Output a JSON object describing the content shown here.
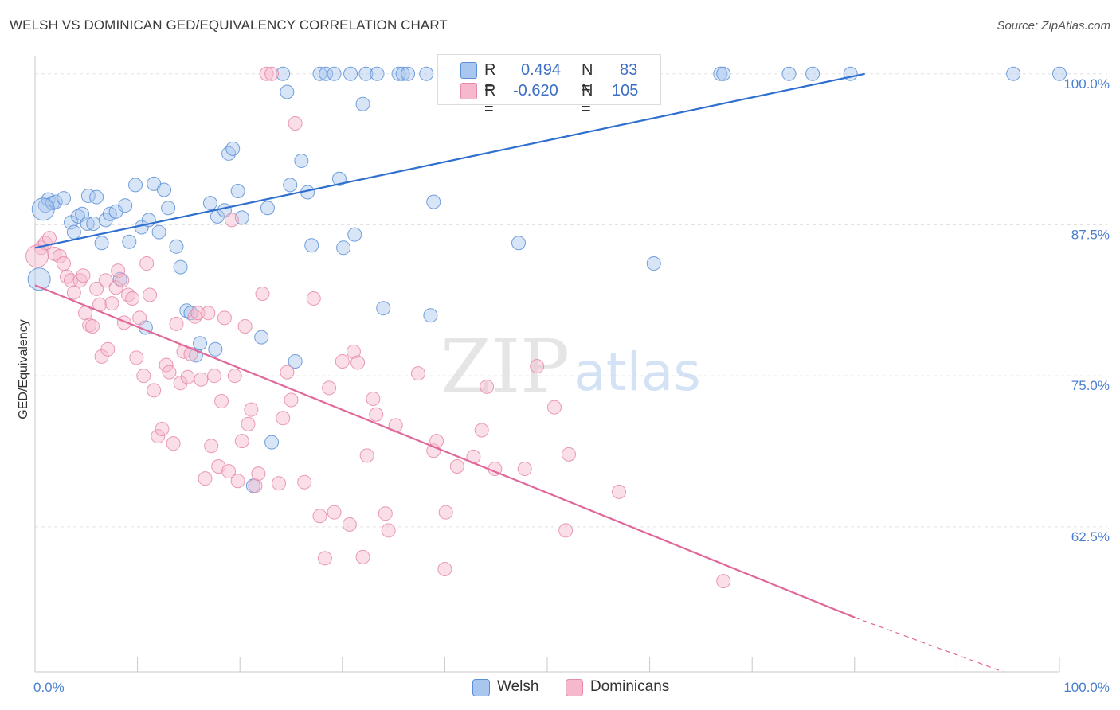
{
  "title": "WELSH VS DOMINICAN GED/EQUIVALENCY CORRELATION CHART",
  "source": "Source: ZipAtlas.com",
  "watermark": {
    "zip": "ZIP",
    "atlas": "atlas"
  },
  "legend_box": {
    "rows": [
      {
        "r_label": "R =",
        "r_value": "0.494",
        "n_label": "N =",
        "n_value": "83"
      },
      {
        "r_label": "R =",
        "r_value": "-0.620",
        "n_label": "N =",
        "n_value": "105"
      }
    ]
  },
  "bottom_legend": [
    "Welsh",
    "Dominicans"
  ],
  "colors": {
    "welsh_fill": "#a9c6ee",
    "welsh_stroke": "#5b8fd6",
    "welsh_line": "#2f6fcf",
    "dom_fill": "#f6b8cc",
    "dom_stroke": "#e58aa8",
    "dom_line": "#e0679a",
    "tick_text": "#4a7fd0",
    "grid": "#e2e2e2"
  },
  "chart_data": {
    "type": "scatter",
    "title": "WELSH VS DOMINICAN GED/EQUIVALENCY CORRELATION CHART",
    "xlabel": "",
    "ylabel": "GED/Equivalency",
    "xlim": [
      0,
      100
    ],
    "ylim": [
      50.5,
      101.5
    ],
    "x_tick_labels": [
      {
        "value": 0,
        "label": "0.0%"
      },
      {
        "value": 100,
        "label": "100.0%"
      }
    ],
    "y_tick_labels": [
      {
        "value": 100,
        "label": "100.0%"
      },
      {
        "value": 87.5,
        "label": "87.5%"
      },
      {
        "value": 75,
        "label": "75.0%"
      },
      {
        "value": 62.5,
        "label": "62.5%"
      }
    ],
    "grid": true,
    "legend_position": "top-center",
    "series": [
      {
        "name": "Welsh",
        "r": 0.494,
        "n": 83,
        "trend": {
          "x0": 0,
          "y0": 85.6,
          "x1": 81,
          "y1": 100
        },
        "points": [
          [
            1.0,
            89.1
          ],
          [
            1.3,
            89.6
          ],
          [
            1.7,
            89.3
          ],
          [
            2.0,
            89.4
          ],
          [
            2.8,
            89.7
          ],
          [
            3.5,
            87.7
          ],
          [
            3.8,
            86.9
          ],
          [
            4.2,
            88.2
          ],
          [
            4.6,
            88.4
          ],
          [
            5.1,
            87.6
          ],
          [
            5.2,
            89.9
          ],
          [
            5.7,
            87.6
          ],
          [
            6.0,
            89.8
          ],
          [
            6.5,
            86.0
          ],
          [
            6.9,
            87.9
          ],
          [
            7.3,
            88.4
          ],
          [
            7.9,
            88.6
          ],
          [
            8.3,
            83.0
          ],
          [
            8.8,
            89.1
          ],
          [
            9.2,
            86.1
          ],
          [
            9.8,
            90.8
          ],
          [
            10.4,
            87.3
          ],
          [
            10.8,
            79.0
          ],
          [
            11.1,
            87.9
          ],
          [
            11.6,
            90.9
          ],
          [
            12.1,
            86.9
          ],
          [
            12.6,
            90.4
          ],
          [
            13.0,
            88.9
          ],
          [
            13.8,
            85.7
          ],
          [
            14.2,
            84.0
          ],
          [
            14.8,
            80.4
          ],
          [
            15.2,
            80.2
          ],
          [
            15.7,
            76.7
          ],
          [
            16.1,
            77.7
          ],
          [
            17.1,
            89.3
          ],
          [
            17.6,
            77.2
          ],
          [
            17.8,
            88.2
          ],
          [
            18.5,
            88.7
          ],
          [
            18.9,
            93.4
          ],
          [
            19.3,
            93.8
          ],
          [
            19.8,
            90.3
          ],
          [
            20.2,
            88.1
          ],
          [
            21.3,
            65.9
          ],
          [
            22.1,
            78.2
          ],
          [
            22.7,
            88.9
          ],
          [
            23.1,
            69.5
          ],
          [
            24.2,
            100.0
          ],
          [
            24.6,
            98.5
          ],
          [
            24.9,
            90.8
          ],
          [
            25.4,
            76.2
          ],
          [
            26.0,
            92.8
          ],
          [
            26.6,
            90.2
          ],
          [
            27.0,
            85.8
          ],
          [
            27.8,
            100.0
          ],
          [
            28.4,
            100.0
          ],
          [
            29.2,
            100.0
          ],
          [
            29.7,
            91.3
          ],
          [
            30.1,
            85.6
          ],
          [
            30.8,
            100.0
          ],
          [
            31.2,
            86.7
          ],
          [
            32.0,
            97.5
          ],
          [
            32.3,
            100.0
          ],
          [
            33.4,
            100.0
          ],
          [
            34.0,
            80.6
          ],
          [
            35.5,
            100.0
          ],
          [
            35.9,
            100.0
          ],
          [
            36.4,
            100.0
          ],
          [
            38.2,
            100.0
          ],
          [
            38.6,
            80.0
          ],
          [
            38.9,
            89.4
          ],
          [
            40.0,
            100.0
          ],
          [
            42.0,
            100.0
          ],
          [
            47.2,
            86.0
          ],
          [
            54.2,
            100.0
          ],
          [
            60.4,
            84.3
          ],
          [
            66.9,
            100.0
          ],
          [
            67.2,
            100.0
          ],
          [
            73.6,
            100.0
          ],
          [
            75.9,
            100.0
          ],
          [
            79.6,
            100.0
          ],
          [
            95.5,
            100.0
          ],
          [
            100.0,
            100.0
          ],
          [
            0.4,
            83.0,
            "big"
          ],
          [
            0.8,
            88.8,
            "big"
          ]
        ]
      },
      {
        "name": "Dominicans",
        "r": -0.62,
        "n": 105,
        "trend": {
          "x0": 0,
          "y0": 82.5,
          "x1": 80,
          "y1": 55.0,
          "dash_to_x": 94.5,
          "dash_to_y": 50.5
        },
        "points": [
          [
            0.6,
            85.6
          ],
          [
            1.0,
            86.0
          ],
          [
            1.4,
            86.4
          ],
          [
            1.9,
            85.1
          ],
          [
            2.4,
            84.9
          ],
          [
            2.8,
            84.3
          ],
          [
            3.1,
            83.2
          ],
          [
            3.5,
            82.9
          ],
          [
            3.8,
            81.9
          ],
          [
            4.4,
            82.9
          ],
          [
            4.7,
            83.3
          ],
          [
            4.9,
            80.2
          ],
          [
            5.3,
            79.2
          ],
          [
            5.6,
            79.1
          ],
          [
            6.0,
            82.2
          ],
          [
            6.3,
            80.9
          ],
          [
            6.5,
            76.6
          ],
          [
            6.9,
            82.9
          ],
          [
            7.1,
            77.2
          ],
          [
            7.5,
            81.0
          ],
          [
            7.9,
            82.3
          ],
          [
            8.1,
            83.7
          ],
          [
            8.5,
            82.9
          ],
          [
            8.7,
            79.4
          ],
          [
            9.1,
            81.7
          ],
          [
            9.5,
            81.4
          ],
          [
            9.9,
            76.5
          ],
          [
            10.2,
            79.8
          ],
          [
            10.6,
            75.0
          ],
          [
            10.9,
            84.3
          ],
          [
            11.2,
            81.7
          ],
          [
            11.6,
            73.8
          ],
          [
            12.0,
            70.0
          ],
          [
            12.4,
            70.6
          ],
          [
            12.8,
            75.9
          ],
          [
            13.1,
            75.3
          ],
          [
            13.5,
            69.4
          ],
          [
            13.8,
            79.3
          ],
          [
            14.2,
            74.4
          ],
          [
            14.5,
            77.0
          ],
          [
            14.9,
            74.9
          ],
          [
            15.2,
            76.8
          ],
          [
            15.6,
            79.9
          ],
          [
            15.9,
            80.2
          ],
          [
            16.2,
            74.7
          ],
          [
            16.6,
            66.5
          ],
          [
            16.9,
            80.2
          ],
          [
            17.2,
            69.2
          ],
          [
            17.5,
            75.0
          ],
          [
            17.9,
            67.5
          ],
          [
            18.2,
            72.9
          ],
          [
            18.5,
            79.8
          ],
          [
            18.9,
            67.1
          ],
          [
            19.2,
            87.9
          ],
          [
            19.5,
            75.0
          ],
          [
            19.8,
            66.3
          ],
          [
            20.2,
            69.6
          ],
          [
            20.5,
            79.1
          ],
          [
            20.8,
            71.0
          ],
          [
            21.1,
            72.2
          ],
          [
            21.5,
            65.9
          ],
          [
            21.8,
            66.9
          ],
          [
            22.2,
            81.8
          ],
          [
            22.6,
            100.0
          ],
          [
            23.1,
            100.0
          ],
          [
            23.8,
            66.1
          ],
          [
            24.2,
            71.5
          ],
          [
            24.6,
            75.3
          ],
          [
            25.0,
            73.0
          ],
          [
            25.4,
            95.9
          ],
          [
            26.3,
            66.2
          ],
          [
            27.2,
            81.4
          ],
          [
            27.8,
            63.4
          ],
          [
            28.3,
            59.9
          ],
          [
            28.7,
            74.0
          ],
          [
            29.2,
            63.7
          ],
          [
            30.0,
            76.2
          ],
          [
            30.7,
            62.7
          ],
          [
            31.1,
            77.0
          ],
          [
            31.5,
            76.1
          ],
          [
            32.0,
            60.0
          ],
          [
            32.4,
            68.4
          ],
          [
            33.0,
            73.1
          ],
          [
            33.3,
            71.8
          ],
          [
            34.2,
            63.6
          ],
          [
            34.5,
            62.2
          ],
          [
            35.2,
            70.9
          ],
          [
            37.4,
            75.2
          ],
          [
            38.9,
            68.8
          ],
          [
            39.2,
            69.6
          ],
          [
            40.1,
            63.7
          ],
          [
            40.0,
            59.0
          ],
          [
            41.2,
            67.5
          ],
          [
            42.8,
            68.3
          ],
          [
            43.6,
            70.5
          ],
          [
            44.1,
            74.1
          ],
          [
            44.9,
            67.3
          ],
          [
            47.8,
            67.3
          ],
          [
            49.0,
            75.8
          ],
          [
            50.7,
            72.4
          ],
          [
            51.8,
            62.2
          ],
          [
            52.1,
            68.5
          ],
          [
            57.0,
            65.4
          ],
          [
            67.2,
            58.0
          ],
          [
            0.2,
            84.9,
            "big"
          ]
        ]
      }
    ]
  }
}
